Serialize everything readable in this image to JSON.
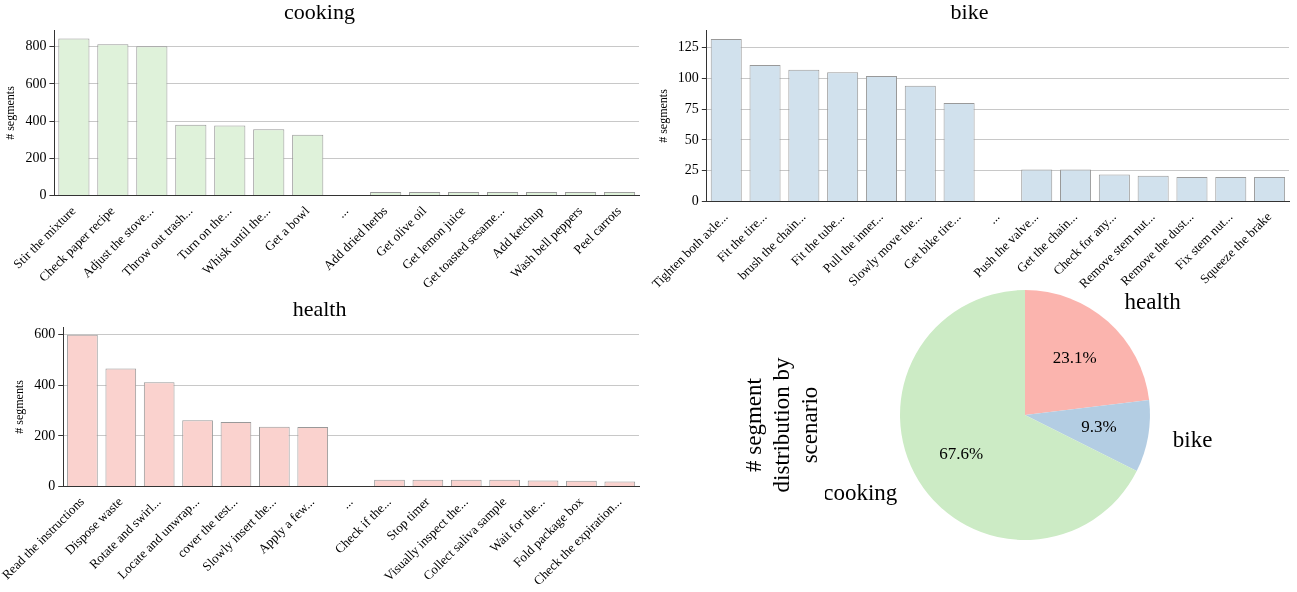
{
  "chart_data": [
    {
      "type": "bar",
      "title": "cooking",
      "ylabel": "# segments",
      "categories": [
        "Stir the mixture",
        "Check paper recipe",
        "Adjust the stove...",
        "Throw out trash...",
        "Turn on the...",
        "Whisk until the...",
        "Get a bowl",
        "...",
        "Add dried herbs",
        "Get olive oil",
        "Get lemon juice",
        "Get toasted sesame...",
        "Add ketchup",
        "Wash bell peppers",
        "Peel carrots"
      ],
      "values": [
        843,
        813,
        802,
        380,
        376,
        356,
        327,
        null,
        20,
        20,
        20,
        20,
        20,
        20,
        20
      ],
      "color": "#dff2da",
      "ylim": [
        0,
        887
      ],
      "yticks": [
        0,
        200,
        400,
        600,
        800
      ],
      "grid": "y"
    },
    {
      "type": "bar",
      "title": "bike",
      "ylabel": "# segments",
      "categories": [
        "Tighten both axle...",
        "Fit the tire...",
        "brush the chain...",
        "Fit the tube...",
        "Pull the inner...",
        "Slowly move the...",
        "Get bike tire...",
        "...",
        "Push the valve...",
        "Get the chain...",
        "Check for any...",
        "Remove stem nut...",
        "Remove the dust...",
        "Fix stem nut...",
        "Squeeze the brake"
      ],
      "values": [
        132,
        111,
        107,
        105,
        102,
        94,
        80,
        null,
        26,
        26,
        22,
        21,
        20,
        20,
        20
      ],
      "color": "#d1e1ed",
      "ylim": [
        0,
        139
      ],
      "yticks": [
        0,
        25,
        50,
        75,
        100,
        125
      ],
      "grid": "y"
    },
    {
      "type": "bar",
      "title": "health",
      "ylabel": "# segments",
      "categories": [
        "Read the instructions",
        "Dispose waste",
        "Rotate and swirl...",
        "Locate and unwrap...",
        "cover the test...",
        "Slowly insert the...",
        "Apply a few...",
        "...",
        "Check if the...",
        "Stop timer",
        "Visually inspect the...",
        "Collect saliva sample",
        "Wait for the...",
        "Fold package box",
        "Check the expiration..."
      ],
      "values": [
        600,
        467,
        412,
        262,
        255,
        236,
        235,
        null,
        27,
        27,
        27,
        27,
        24,
        23,
        20
      ],
      "color": "#fad2ce",
      "ylim": [
        0,
        629
      ],
      "yticks": [
        0,
        200,
        400,
        600
      ],
      "grid": "y"
    },
    {
      "type": "pie",
      "ylabel": "# segment distribution by scenario",
      "categories": [
        "health",
        "bike",
        "cooking"
      ],
      "values": [
        23.1,
        9.3,
        67.6
      ],
      "colors": [
        "#fbb4ae",
        "#b3cde3",
        "#ccebc5"
      ],
      "value_labels": [
        "23.1%",
        "9.3%",
        "67.6%"
      ]
    }
  ]
}
